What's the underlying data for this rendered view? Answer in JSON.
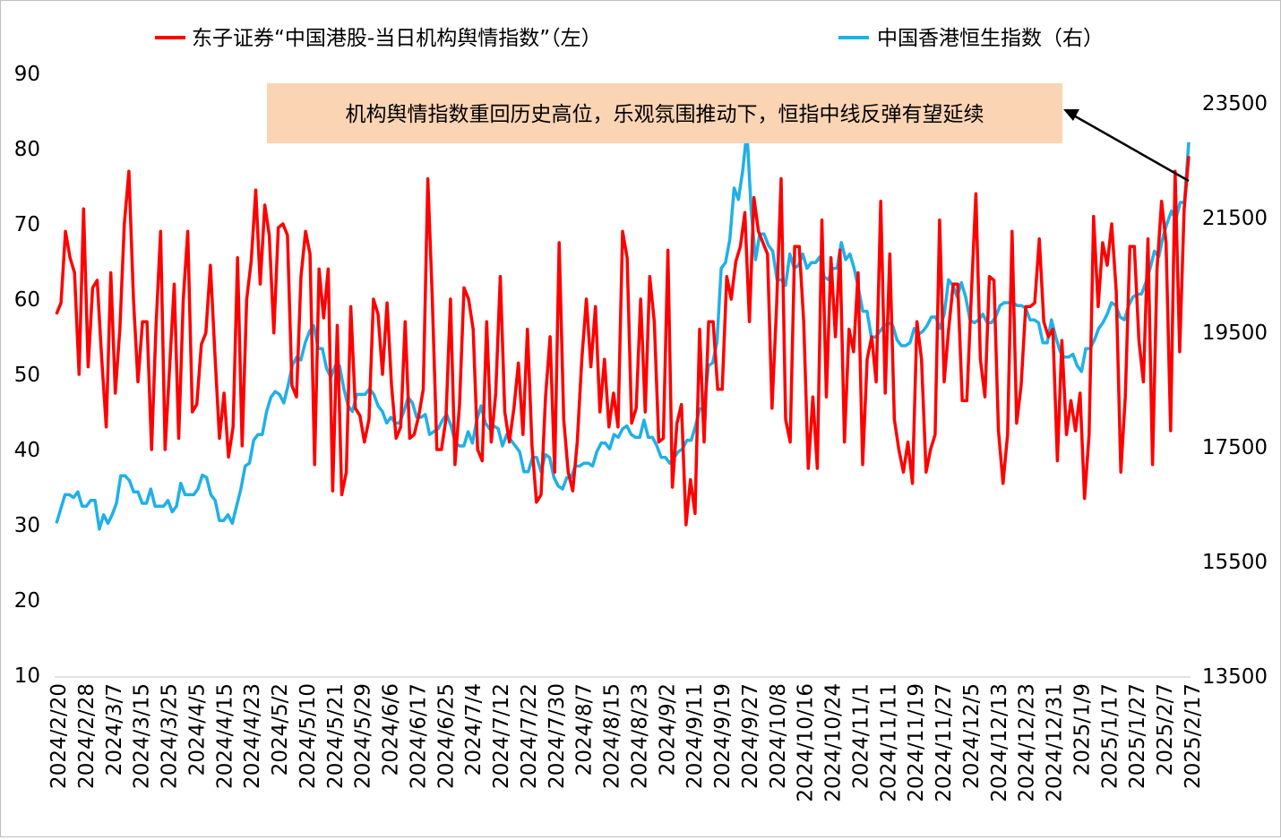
{
  "chart_data": {
    "type": "line",
    "legend": {
      "placement": "top",
      "items": [
        {
          "label": "东子证券“中国港股-当日机构舆情指数”（左）",
          "color": "#ff0000"
        },
        {
          "label": "中国香港恒生指数（右）",
          "color": "#1fb0e8"
        }
      ]
    },
    "left_axis": {
      "min": 10,
      "max": 90,
      "ticks": [
        "90",
        "80",
        "70",
        "60",
        "50",
        "40",
        "30",
        "20",
        "10"
      ]
    },
    "right_axis": {
      "min": 13500,
      "max": 24000,
      "ticks": [
        "23500",
        "21500",
        "19500",
        "17500",
        "15500",
        "13500"
      ]
    },
    "x_tick_labels": [
      "2024/2/20",
      "2024/2/28",
      "2024/3/7",
      "2024/3/15",
      "2024/3/25",
      "2024/4/5",
      "2024/4/15",
      "2024/4/23",
      "2024/5/2",
      "2024/5/10",
      "2024/5/21",
      "2024/5/29",
      "2024/6/6",
      "2024/6/17",
      "2024/6/25",
      "2024/7/4",
      "2024/7/12",
      "2024/7/22",
      "2024/7/30",
      "2024/8/7",
      "2024/8/15",
      "2024/8/23",
      "2024/9/2",
      "2024/9/11",
      "2024/9/19",
      "2024/9/27",
      "2024/10/8",
      "2024/10/16",
      "2024/10/24",
      "2024/11/1",
      "2024/11/11",
      "2024/11/19",
      "2024/11/27",
      "2024/12/5",
      "2024/12/13",
      "2024/12/23",
      "2024/12/31",
      "2025/1/9",
      "2025/1/17",
      "2025/1/27",
      "2025/2/7",
      "2025/2/17"
    ],
    "annotation": "机构舆情指数重回历史高位，乐观氛围推动下，恒指中线反弹有望延续",
    "series": [
      {
        "name": "东子证券“中国港股-当日机构舆情指数”（左）",
        "axis": "left",
        "color": "#ff0000",
        "values": [
          58,
          59.5,
          69,
          65.5,
          63.5,
          50,
          72,
          51,
          61.5,
          62.5,
          52,
          43,
          63.5,
          47.5,
          56,
          70,
          77,
          60,
          49,
          57,
          57,
          40,
          56.5,
          69,
          40,
          51,
          62,
          41.5,
          60,
          69,
          45,
          46,
          54,
          55.5,
          64.5,
          52.5,
          41.5,
          47.5,
          39,
          43,
          65.5,
          40.5,
          60,
          65,
          74.5,
          62,
          72.5,
          68.5,
          55.5,
          69.5,
          70,
          68.5,
          48.5,
          47,
          63,
          69,
          66,
          38,
          64,
          57.5,
          64,
          34.5,
          56.5,
          34,
          37,
          59,
          45.5,
          44.5,
          41,
          44,
          60,
          58,
          50,
          59.5,
          48.5,
          41.5,
          43,
          57,
          41.5,
          42,
          44.5,
          48,
          76,
          60,
          40,
          40,
          44,
          60,
          38,
          46,
          61.5,
          60,
          56,
          40,
          38.5,
          57,
          41,
          47.5,
          63,
          45,
          41,
          45.5,
          51.5,
          42,
          56,
          40.5,
          33,
          34,
          47,
          55,
          37,
          67.5,
          44,
          37,
          34.5,
          41,
          52,
          60,
          51,
          59,
          45,
          52,
          43,
          47.5,
          43,
          69,
          65.5,
          43.5,
          45.5,
          60,
          45,
          63,
          57,
          41,
          41.5,
          66.5,
          35,
          43.5,
          46,
          30,
          36,
          31.5,
          56,
          41,
          57,
          57,
          48,
          48,
          63,
          60,
          65,
          67,
          71.5,
          57,
          73.5,
          69,
          67.5,
          66,
          45.5,
          59,
          76,
          44,
          41,
          67,
          67,
          57,
          37.5,
          47,
          37.5,
          70.5,
          47,
          65.5,
          55,
          66.5,
          41,
          56,
          53,
          63.5,
          38,
          52,
          55,
          49,
          73,
          47.5,
          66,
          44,
          40,
          37,
          41,
          35.5,
          57,
          52,
          37,
          40,
          42,
          70.5,
          49,
          56,
          62,
          62,
          46.5,
          46.5,
          60.5,
          74,
          52,
          47,
          63,
          62.5,
          42.5,
          35.5,
          42,
          69,
          43.5,
          48.5,
          59,
          59,
          59.5,
          68,
          57,
          55,
          56,
          38.5,
          54.5,
          42,
          46.5,
          42.5,
          47.5,
          33.5,
          42,
          71,
          59,
          67.5,
          64.5,
          70,
          61,
          37,
          47,
          67,
          67,
          54.5,
          49,
          68,
          38,
          64,
          73,
          67.5,
          42.5,
          77,
          53,
          72,
          79
        ]
      },
      {
        "name": "中国香港恒生指数（右）",
        "axis": "right",
        "color": "#1fb0e8",
        "values": [
          16150,
          16400,
          16650,
          16650,
          16600,
          16700,
          16450,
          16450,
          16550,
          16550,
          16050,
          16300,
          16150,
          16300,
          16500,
          16980,
          16980,
          16900,
          16700,
          16700,
          16500,
          16500,
          16750,
          16450,
          16450,
          16450,
          16550,
          16350,
          16450,
          16850,
          16650,
          16650,
          16650,
          16750,
          16990,
          16950,
          16650,
          16550,
          16200,
          16200,
          16300,
          16150,
          16450,
          16750,
          17150,
          17200,
          17600,
          17700,
          17700,
          18100,
          18350,
          18450,
          18400,
          18250,
          18550,
          18900,
          19050,
          19000,
          19300,
          19500,
          19600,
          19200,
          19200,
          18850,
          18700,
          18900,
          18900,
          18500,
          18200,
          18100,
          18400,
          18400,
          18400,
          18500,
          18400,
          18200,
          18100,
          17900,
          18000,
          17900,
          17900,
          18100,
          18350,
          18250,
          18000,
          18000,
          18050,
          17700,
          17750,
          17800,
          17950,
          18050,
          17850,
          17550,
          17500,
          17500,
          17750,
          17550,
          17950,
          18200,
          17900,
          17800,
          17850,
          17800,
          17500,
          17700,
          17600,
          17500,
          17400,
          17050,
          17050,
          17300,
          17300,
          17050,
          17350,
          17300,
          16950,
          16800,
          16750,
          16950,
          16950,
          17150,
          17150,
          17200,
          17200,
          17150,
          17400,
          17550,
          17550,
          17450,
          17700,
          17650,
          17800,
          17850,
          17700,
          17650,
          17650,
          17950,
          17650,
          17650,
          17500,
          17300,
          17300,
          17200,
          17300,
          17400,
          17450,
          17600,
          17600,
          17850,
          18150,
          18150,
          18900,
          18950,
          19300,
          20600,
          20700,
          21100,
          22000,
          21800,
          22300,
          23000,
          21600,
          20750,
          21200,
          21200,
          21000,
          20900,
          20400,
          20400,
          20300,
          20850,
          20600,
          20650,
          20850,
          20600,
          20700,
          20700,
          20800,
          20450,
          20400,
          20600,
          20600,
          21050,
          20750,
          20850,
          20600,
          20250,
          19850,
          19850,
          19400,
          19400,
          19500,
          19600,
          19650,
          19600,
          19350,
          19250,
          19250,
          19300,
          19550,
          19450,
          19500,
          19600,
          19750,
          19750,
          19550,
          19800,
          20400,
          20300,
          20100,
          20350,
          20100,
          19700,
          19650,
          19700,
          19800,
          19650,
          19650,
          19750,
          19950,
          20000,
          20000,
          20000,
          19950,
          19950,
          19900,
          19700,
          19700,
          19650,
          19300,
          19300,
          19700,
          19400,
          19150,
          19050,
          19050,
          19100,
          18900,
          18800,
          19200,
          19200,
          19350,
          19550,
          19650,
          19800,
          20000,
          19950,
          19750,
          19700,
          19950,
          20100,
          20150,
          20150,
          20350,
          20600,
          20900,
          20800,
          21150,
          21400,
          21600,
          21450,
          21750,
          21750,
          22800
        ]
      }
    ]
  }
}
